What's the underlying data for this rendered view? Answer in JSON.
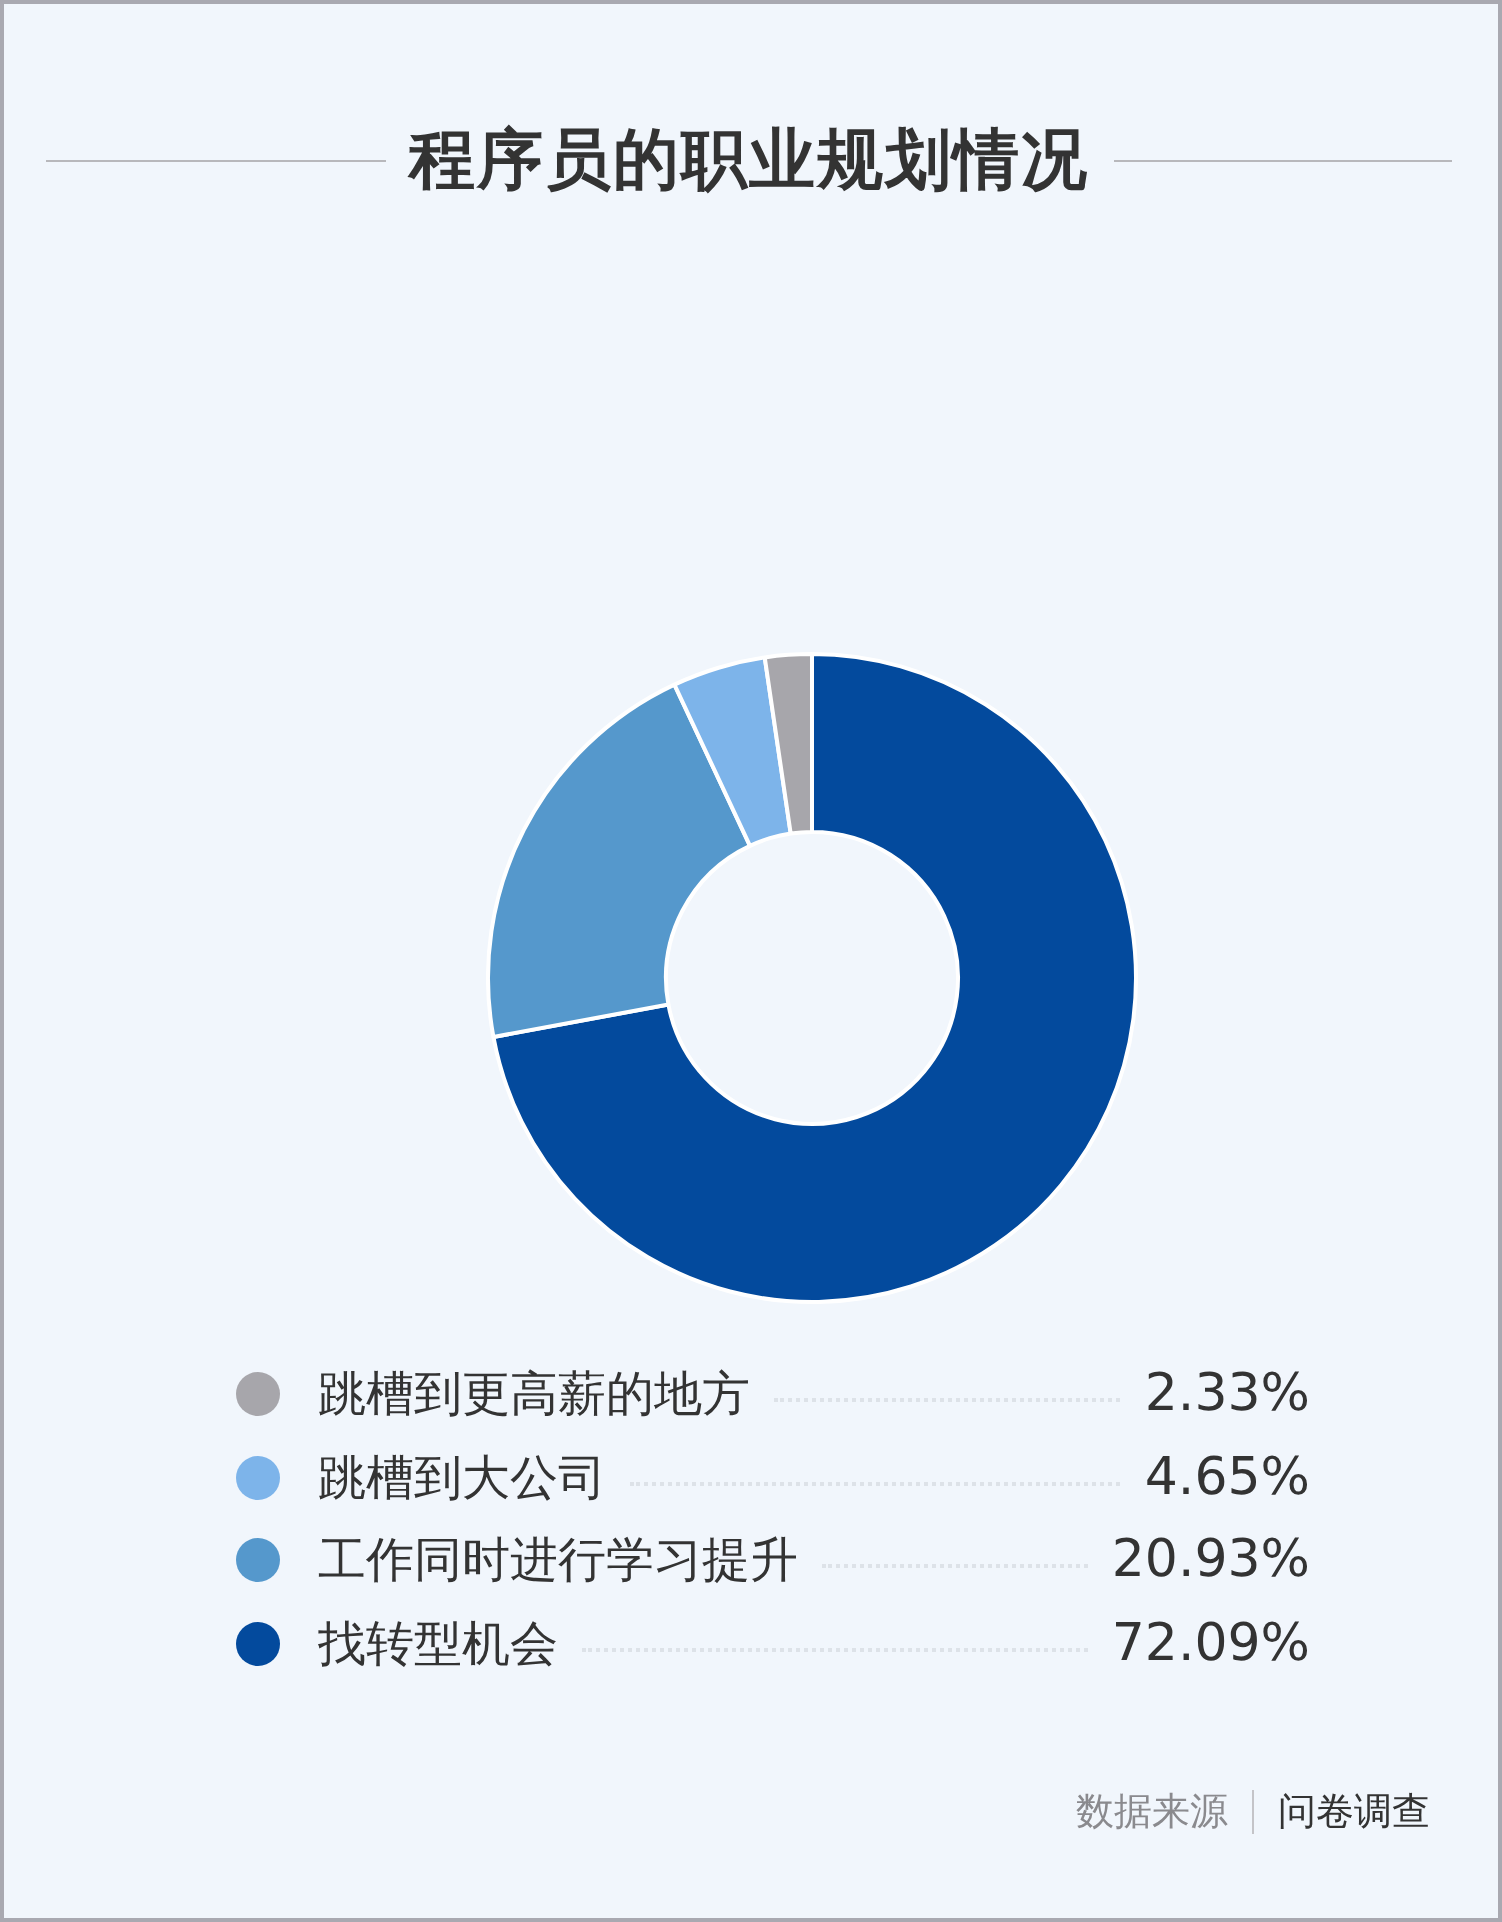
{
  "chart_data": {
    "type": "donut",
    "title": "程序员的职业规划情况",
    "categories": [
      "跳槽到更高薪的地方",
      "跳槽到大公司",
      "工作同时进行学习提升",
      "找转型机会"
    ],
    "values": [
      2.33,
      4.65,
      20.93,
      72.09
    ],
    "colors": [
      "#a7a6ab",
      "#7db4ea",
      "#5598cc",
      "#034a9d"
    ],
    "value_labels": [
      "2.33%",
      "4.65%",
      "20.93%",
      "72.09%"
    ],
    "legend": "bottom",
    "annotations": [
      "数据来源",
      "问卷调查"
    ]
  }
}
